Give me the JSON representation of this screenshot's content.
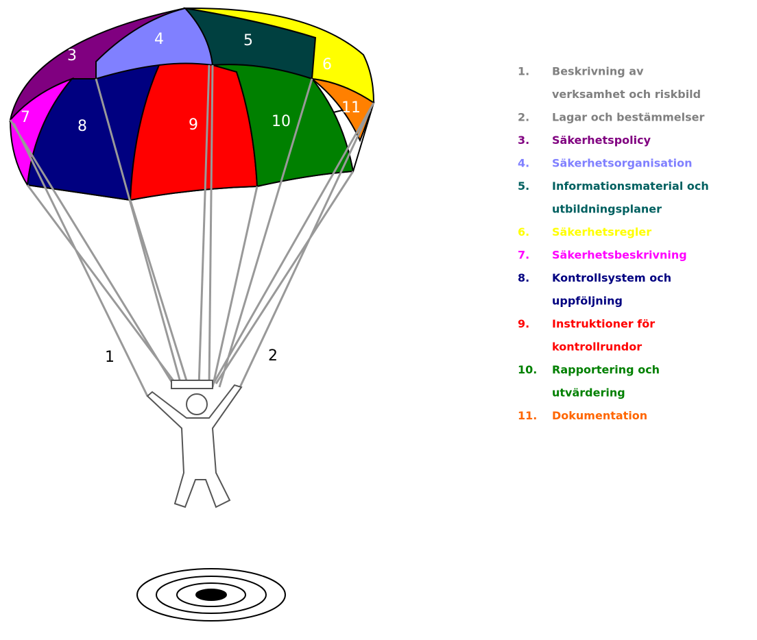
{
  "canopy_labels": [
    "3",
    "4",
    "5",
    "6",
    "7",
    "8",
    "9",
    "10",
    "11"
  ],
  "line_labels": [
    "1",
    "2"
  ],
  "legend": [
    {
      "number": "1.",
      "lines": [
        "Beskrivning av",
        "verksamhet och riskbild"
      ]
    },
    {
      "number": "2.",
      "lines": [
        "Lagar och bestämmelser"
      ]
    },
    {
      "number": "3.",
      "lines": [
        "Säkerhetspolicy"
      ]
    },
    {
      "number": "4.",
      "lines": [
        "Säkerhetsorganisation"
      ]
    },
    {
      "number": "5.",
      "lines": [
        "Informationsmaterial och",
        "utbildningsplaner"
      ]
    },
    {
      "number": "6.",
      "lines": [
        "Säkerhetsregler"
      ]
    },
    {
      "number": "7.",
      "lines": [
        "Säkerhetsbeskrivning"
      ]
    },
    {
      "number": "8.",
      "lines": [
        "Kontrollsystem och",
        "uppföljning"
      ]
    },
    {
      "number": "9.",
      "lines": [
        "Instruktioner för",
        "kontrollrundor"
      ]
    },
    {
      "number": "10.",
      "lines": [
        "Rapportering och",
        "utvärdering"
      ]
    },
    {
      "number": "11.",
      "lines": [
        "Dokumentation"
      ]
    }
  ]
}
